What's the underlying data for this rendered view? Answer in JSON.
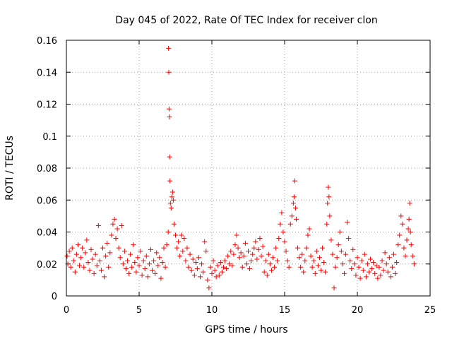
{
  "chart_data": {
    "type": "scatter",
    "title": "Day 045 of 2022, Rate Of TEC Index for receiver clon",
    "xlabel": "GPS time / hours",
    "ylabel": "ROTI / TECUs",
    "xlim": [
      0,
      25
    ],
    "ylim": [
      0,
      0.16
    ],
    "xticks": [
      0,
      5,
      10,
      15,
      20,
      25
    ],
    "yticks": [
      0,
      0.02,
      0.04,
      0.06,
      0.08,
      0.1,
      0.12,
      0.14,
      0.16
    ],
    "xtick_labels": [
      "0",
      "5",
      "10",
      "15",
      "20",
      "25"
    ],
    "ytick_labels": [
      "0",
      "0.02",
      "0.04",
      "0.06",
      "0.08",
      "0.1",
      "0.12",
      "0.14",
      "0.16"
    ],
    "grid": true,
    "marker": "+",
    "color": "#ff0000",
    "series": [
      {
        "name": "ROTI",
        "points": [
          [
            0.05,
            0.025
          ],
          [
            0.1,
            0.02
          ],
          [
            0.2,
            0.028
          ],
          [
            0.3,
            0.018
          ],
          [
            0.4,
            0.03
          ],
          [
            0.5,
            0.022
          ],
          [
            0.6,
            0.015
          ],
          [
            0.7,
            0.026
          ],
          [
            0.8,
            0.032
          ],
          [
            0.9,
            0.019
          ],
          [
            1.0,
            0.024
          ],
          [
            1.1,
            0.03
          ],
          [
            1.2,
            0.018
          ],
          [
            1.3,
            0.027
          ],
          [
            1.4,
            0.035
          ],
          [
            1.5,
            0.021
          ],
          [
            1.6,
            0.016
          ],
          [
            1.7,
            0.029
          ],
          [
            1.8,
            0.023
          ],
          [
            1.9,
            0.014
          ],
          [
            2.0,
            0.026
          ],
          [
            2.1,
            0.019
          ],
          [
            2.2,
            0.044
          ],
          [
            2.3,
            0.022
          ],
          [
            2.4,
            0.016
          ],
          [
            2.5,
            0.03
          ],
          [
            2.6,
            0.012
          ],
          [
            2.7,
            0.025
          ],
          [
            2.8,
            0.033
          ],
          [
            2.9,
            0.018
          ],
          [
            3.0,
            0.027
          ],
          [
            3.1,
            0.038
          ],
          [
            3.2,
            0.045
          ],
          [
            3.3,
            0.048
          ],
          [
            3.4,
            0.036
          ],
          [
            3.5,
            0.042
          ],
          [
            3.6,
            0.03
          ],
          [
            3.7,
            0.024
          ],
          [
            3.8,
            0.044
          ],
          [
            3.9,
            0.02
          ],
          [
            4.0,
            0.028
          ],
          [
            4.1,
            0.017
          ],
          [
            4.2,
            0.022
          ],
          [
            4.3,
            0.014
          ],
          [
            4.4,
            0.026
          ],
          [
            4.5,
            0.018
          ],
          [
            4.6,
            0.032
          ],
          [
            4.7,
            0.021
          ],
          [
            4.8,
            0.015
          ],
          [
            4.9,
            0.024
          ],
          [
            5.0,
            0.019
          ],
          [
            5.1,
            0.028
          ],
          [
            5.2,
            0.013
          ],
          [
            5.3,
            0.022
          ],
          [
            5.4,
            0.017
          ],
          [
            5.5,
            0.025
          ],
          [
            5.6,
            0.012
          ],
          [
            5.7,
            0.02
          ],
          [
            5.8,
            0.029
          ],
          [
            5.9,
            0.016
          ],
          [
            6.0,
            0.022
          ],
          [
            6.1,
            0.014
          ],
          [
            6.2,
            0.027
          ],
          [
            6.3,
            0.019
          ],
          [
            6.4,
            0.024
          ],
          [
            6.5,
            0.011
          ],
          [
            6.6,
            0.021
          ],
          [
            6.7,
            0.03
          ],
          [
            6.8,
            0.018
          ],
          [
            6.9,
            0.032
          ],
          [
            7.0,
            0.04
          ],
          [
            7.02,
            0.155
          ],
          [
            7.04,
            0.14
          ],
          [
            7.06,
            0.117
          ],
          [
            7.08,
            0.112
          ],
          [
            7.1,
            0.087
          ],
          [
            7.12,
            0.072
          ],
          [
            7.15,
            0.058
          ],
          [
            7.2,
            0.055
          ],
          [
            7.25,
            0.062
          ],
          [
            7.3,
            0.065
          ],
          [
            7.35,
            0.06
          ],
          [
            7.4,
            0.045
          ],
          [
            7.5,
            0.038
          ],
          [
            7.6,
            0.03
          ],
          [
            7.7,
            0.034
          ],
          [
            7.8,
            0.025
          ],
          [
            7.9,
            0.038
          ],
          [
            8.0,
            0.028
          ],
          [
            8.1,
            0.036
          ],
          [
            8.2,
            0.022
          ],
          [
            8.3,
            0.03
          ],
          [
            8.4,
            0.018
          ],
          [
            8.5,
            0.026
          ],
          [
            8.6,
            0.016
          ],
          [
            8.7,
            0.023
          ],
          [
            8.8,
            0.013
          ],
          [
            8.9,
            0.021
          ],
          [
            9.0,
            0.017
          ],
          [
            9.1,
            0.024
          ],
          [
            9.2,
            0.012
          ],
          [
            9.3,
            0.02
          ],
          [
            9.4,
            0.015
          ],
          [
            9.5,
            0.034
          ],
          [
            9.6,
            0.028
          ],
          [
            9.7,
            0.01
          ],
          [
            9.8,
            0.005
          ],
          [
            9.9,
            0.018
          ],
          [
            10.0,
            0.014
          ],
          [
            10.1,
            0.022
          ],
          [
            10.2,
            0.016
          ],
          [
            10.3,
            0.012
          ],
          [
            10.4,
            0.019
          ],
          [
            10.5,
            0.013
          ],
          [
            10.6,
            0.021
          ],
          [
            10.7,
            0.015
          ],
          [
            10.8,
            0.018
          ],
          [
            10.9,
            0.022
          ],
          [
            11.0,
            0.017
          ],
          [
            11.1,
            0.025
          ],
          [
            11.2,
            0.02
          ],
          [
            11.3,
            0.028
          ],
          [
            11.4,
            0.019
          ],
          [
            11.5,
            0.026
          ],
          [
            11.6,
            0.032
          ],
          [
            11.7,
            0.038
          ],
          [
            11.8,
            0.03
          ],
          [
            11.9,
            0.024
          ],
          [
            12.0,
            0.027
          ],
          [
            12.1,
            0.018
          ],
          [
            12.2,
            0.025
          ],
          [
            12.3,
            0.033
          ],
          [
            12.4,
            0.02
          ],
          [
            12.5,
            0.028
          ],
          [
            12.6,
            0.017
          ],
          [
            12.7,
            0.022
          ],
          [
            12.8,
            0.026
          ],
          [
            12.9,
            0.03
          ],
          [
            13.0,
            0.034
          ],
          [
            13.1,
            0.023
          ],
          [
            13.2,
            0.029
          ],
          [
            13.3,
            0.036
          ],
          [
            13.4,
            0.025
          ],
          [
            13.5,
            0.031
          ],
          [
            13.6,
            0.015
          ],
          [
            13.7,
            0.022
          ],
          [
            13.8,
            0.013
          ],
          [
            13.9,
            0.026
          ],
          [
            14.0,
            0.02
          ],
          [
            14.1,
            0.016
          ],
          [
            14.2,
            0.024
          ],
          [
            14.3,
            0.018
          ],
          [
            14.4,
            0.03
          ],
          [
            14.5,
            0.022
          ],
          [
            14.6,
            0.036
          ],
          [
            14.7,
            0.045
          ],
          [
            14.8,
            0.052
          ],
          [
            14.9,
            0.04
          ],
          [
            15.0,
            0.034
          ],
          [
            15.1,
            0.028
          ],
          [
            15.2,
            0.022
          ],
          [
            15.3,
            0.018
          ],
          [
            15.4,
            0.045
          ],
          [
            15.5,
            0.05
          ],
          [
            15.6,
            0.058
          ],
          [
            15.65,
            0.062
          ],
          [
            15.7,
            0.072
          ],
          [
            15.75,
            0.055
          ],
          [
            15.8,
            0.048
          ],
          [
            15.9,
            0.03
          ],
          [
            16.0,
            0.024
          ],
          [
            16.1,
            0.018
          ],
          [
            16.2,
            0.026
          ],
          [
            16.3,
            0.015
          ],
          [
            16.4,
            0.022
          ],
          [
            16.5,
            0.03
          ],
          [
            16.6,
            0.038
          ],
          [
            16.7,
            0.042
          ],
          [
            16.8,
            0.025
          ],
          [
            16.9,
            0.018
          ],
          [
            17.0,
            0.022
          ],
          [
            17.1,
            0.014
          ],
          [
            17.2,
            0.028
          ],
          [
            17.3,
            0.019
          ],
          [
            17.4,
            0.024
          ],
          [
            17.5,
            0.016
          ],
          [
            17.6,
            0.03
          ],
          [
            17.7,
            0.021
          ],
          [
            17.8,
            0.015
          ],
          [
            17.9,
            0.045
          ],
          [
            17.95,
            0.058
          ],
          [
            18.0,
            0.068
          ],
          [
            18.05,
            0.062
          ],
          [
            18.1,
            0.05
          ],
          [
            18.2,
            0.035
          ],
          [
            18.3,
            0.026
          ],
          [
            18.4,
            0.005
          ],
          [
            18.5,
            0.018
          ],
          [
            18.6,
            0.024
          ],
          [
            18.7,
            0.032
          ],
          [
            18.8,
            0.04
          ],
          [
            18.9,
            0.028
          ],
          [
            19.0,
            0.02
          ],
          [
            19.1,
            0.014
          ],
          [
            19.2,
            0.026
          ],
          [
            19.3,
            0.046
          ],
          [
            19.4,
            0.036
          ],
          [
            19.5,
            0.022
          ],
          [
            19.6,
            0.017
          ],
          [
            19.7,
            0.029
          ],
          [
            19.8,
            0.02
          ],
          [
            19.9,
            0.013
          ],
          [
            20.0,
            0.024
          ],
          [
            20.1,
            0.018
          ],
          [
            20.2,
            0.011
          ],
          [
            20.3,
            0.022
          ],
          [
            20.4,
            0.016
          ],
          [
            20.5,
            0.026
          ],
          [
            20.6,
            0.012
          ],
          [
            20.7,
            0.02
          ],
          [
            20.8,
            0.015
          ],
          [
            20.9,
            0.023
          ],
          [
            21.0,
            0.017
          ],
          [
            21.1,
            0.021
          ],
          [
            21.2,
            0.014
          ],
          [
            21.3,
            0.019
          ],
          [
            21.4,
            0.011
          ],
          [
            21.5,
            0.018
          ],
          [
            21.6,
            0.013
          ],
          [
            21.7,
            0.022
          ],
          [
            21.8,
            0.016
          ],
          [
            21.9,
            0.027
          ],
          [
            22.0,
            0.02
          ],
          [
            22.1,
            0.015
          ],
          [
            22.2,
            0.024
          ],
          [
            22.3,
            0.012
          ],
          [
            22.4,
            0.018
          ],
          [
            22.5,
            0.026
          ],
          [
            22.6,
            0.014
          ],
          [
            22.7,
            0.021
          ],
          [
            22.8,
            0.032
          ],
          [
            22.9,
            0.038
          ],
          [
            23.0,
            0.05
          ],
          [
            23.1,
            0.045
          ],
          [
            23.2,
            0.03
          ],
          [
            23.3,
            0.025
          ],
          [
            23.4,
            0.035
          ],
          [
            23.5,
            0.042
          ],
          [
            23.55,
            0.048
          ],
          [
            23.6,
            0.058
          ],
          [
            23.65,
            0.04
          ],
          [
            23.7,
            0.032
          ],
          [
            23.8,
            0.025
          ],
          [
            23.9,
            0.02
          ]
        ]
      }
    ]
  }
}
